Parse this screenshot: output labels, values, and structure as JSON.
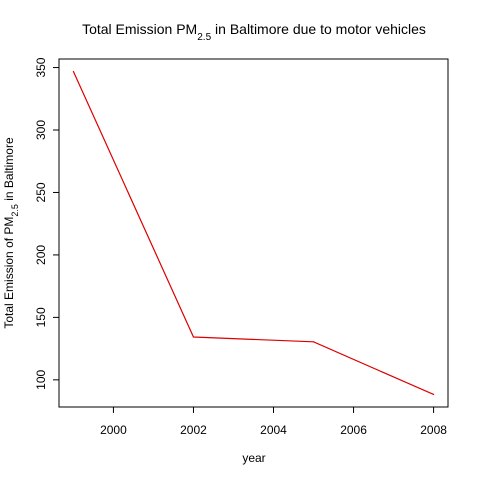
{
  "chart_data": {
    "type": "line",
    "title": {
      "prefix": "Total Emission PM",
      "subscript": "2.5",
      "suffix": " in Baltimore due to motor vehicles"
    },
    "xlabel": "year",
    "ylabel": {
      "prefix": "Total Emission of PM",
      "subscript": "2.5",
      "suffix": " in Baltimore"
    },
    "x": [
      1999,
      2002,
      2005,
      2008
    ],
    "series": [
      {
        "values": [
          346.82,
          134.31,
          130.43,
          88.28
        ],
        "color": "#dd0000"
      }
    ],
    "xlim": [
      1998.64,
      2008.36
    ],
    "ylim": [
      78.26,
      356.84
    ],
    "xticks": [
      2000,
      2002,
      2004,
      2006,
      2008
    ],
    "yticks": [
      100,
      150,
      200,
      250,
      300,
      350
    ],
    "grid": false,
    "legend": "none"
  }
}
